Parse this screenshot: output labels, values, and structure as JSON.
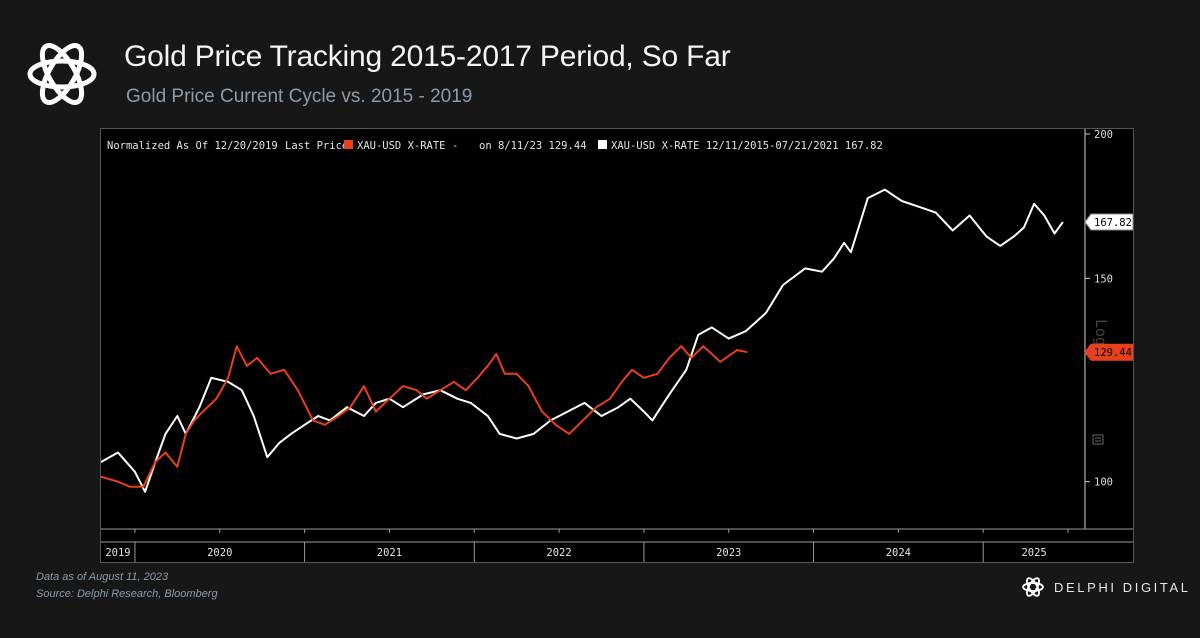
{
  "header": {
    "title": "Gold Price Tracking 2015-2017 Period, So Far",
    "subtitle": "Gold Price Current Cycle vs. 2015 - 2019",
    "logo_icon": "delphi-knot-icon"
  },
  "footer": {
    "data_note": "Data as of August 11, 2023",
    "source": "Source: Delphi Research, Bloomberg",
    "brand": "DELPHI DIGITAL",
    "brand_icon": "delphi-knot-icon"
  },
  "chart_data": {
    "type": "line",
    "title": "Gold Price Tracking 2015-2017 Period, So Far",
    "subtitle": "Gold Price Current Cycle vs. 2015 - 2019",
    "legend": {
      "normalized_label": "Normalized As Of 12/20/2019",
      "last_price_label": "Last Price",
      "series1_label": "XAU-USD X-RATE -",
      "series1_suffix": "on 8/11/23 129.44",
      "series2_label": "XAU-USD X-RATE 12/11/2015-07/21/2021 167.82",
      "placement": "top-left"
    },
    "x_labels": [
      "2019",
      "2020",
      "2021",
      "2022",
      "2023",
      "2024",
      "2025"
    ],
    "x_range": [
      2019.8,
      2025.6
    ],
    "y_scale": "log",
    "y_scale_label": "Log",
    "y_ticks": [
      100,
      150,
      200
    ],
    "ylim": [
      91,
      202
    ],
    "colors": {
      "current_cycle": "#e8401c",
      "prior_cycle": "#ffffff",
      "axis": "#cfcfcf"
    },
    "series": [
      {
        "name": "XAU-USD X-RATE - (current cycle)",
        "color": "#e8401c",
        "last_value": 129.44,
        "last_value_label": "129.44",
        "x": [
          2019.8,
          2019.9,
          2019.97,
          2020.05,
          2020.12,
          2020.18,
          2020.25,
          2020.3,
          2020.35,
          2020.4,
          2020.48,
          2020.55,
          2020.6,
          2020.66,
          2020.72,
          2020.8,
          2020.88,
          2020.96,
          2021.05,
          2021.12,
          2021.2,
          2021.27,
          2021.35,
          2021.42,
          2021.5,
          2021.58,
          2021.66,
          2021.72,
          2021.8,
          2021.88,
          2021.95,
          2022.02,
          2022.08,
          2022.13,
          2022.18,
          2022.25,
          2022.32,
          2022.4,
          2022.48,
          2022.56,
          2022.64,
          2022.72,
          2022.8,
          2022.87,
          2022.93,
          2023.0,
          2023.08,
          2023.15,
          2023.22,
          2023.28,
          2023.35,
          2023.45,
          2023.55,
          2023.61
        ],
        "y": [
          101,
          100,
          99,
          99,
          104,
          106,
          103,
          110,
          113,
          115,
          118,
          123,
          131,
          126,
          128,
          124,
          125,
          120,
          113,
          112,
          114,
          116,
          121,
          115,
          118,
          121,
          120,
          118,
          120,
          122,
          120,
          123,
          126,
          129,
          124,
          124,
          121,
          115,
          112,
          110,
          113,
          116,
          118,
          122,
          125,
          123,
          124,
          128,
          131,
          128,
          131,
          127,
          130,
          129.44
        ]
      },
      {
        "name": "XAU-USD X-RATE 12/11/2015-07/21/2021 (prior cycle)",
        "color": "#ffffff",
        "last_value": 167.82,
        "last_value_label": "167.82",
        "x": [
          2019.8,
          2019.9,
          2020.0,
          2020.06,
          2020.12,
          2020.18,
          2020.25,
          2020.3,
          2020.38,
          2020.45,
          2020.55,
          2020.63,
          2020.7,
          2020.78,
          2020.85,
          2020.92,
          2021.0,
          2021.08,
          2021.15,
          2021.25,
          2021.35,
          2021.42,
          2021.5,
          2021.58,
          2021.7,
          2021.8,
          2021.9,
          2021.98,
          2022.08,
          2022.15,
          2022.25,
          2022.35,
          2022.45,
          2022.55,
          2022.65,
          2022.75,
          2022.85,
          2022.92,
          2023.0,
          2023.05,
          2023.1,
          2023.15,
          2023.25,
          2023.32,
          2023.4,
          2023.5,
          2023.6,
          2023.72,
          2023.82,
          2023.95,
          2024.05,
          2024.12,
          2024.18,
          2024.22,
          2024.26,
          2024.32,
          2024.42,
          2024.52,
          2024.62,
          2024.72,
          2024.82,
          2024.92,
          2025.02,
          2025.1,
          2025.18,
          2025.24,
          2025.3,
          2025.36,
          2025.42,
          2025.47
        ],
        "y": [
          104,
          106,
          102,
          98,
          104,
          110,
          114,
          110,
          116,
          123,
          122,
          120,
          114,
          105,
          108,
          110,
          112,
          114,
          113,
          116,
          114,
          117,
          118,
          116,
          119,
          120,
          118,
          117,
          114,
          110,
          109,
          110,
          113,
          115,
          117,
          114,
          116,
          118,
          115,
          113,
          116,
          119,
          125,
          134,
          136,
          133,
          135,
          140,
          148,
          153,
          152,
          156,
          161,
          158,
          165,
          176,
          179,
          175,
          173,
          171,
          165,
          170,
          163,
          160,
          163,
          166,
          174,
          170,
          164,
          167.82
        ]
      }
    ]
  }
}
